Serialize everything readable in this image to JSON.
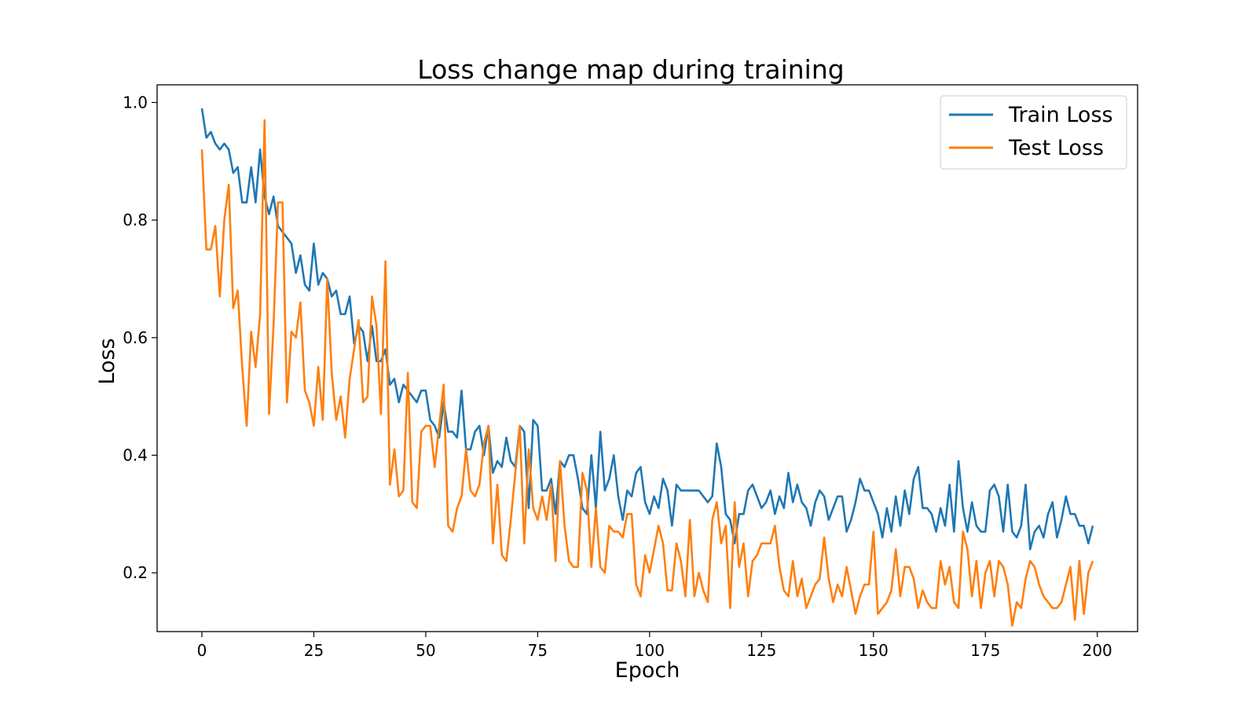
{
  "chart_data": {
    "type": "line",
    "title": "Loss change map during training",
    "xlabel": "Epoch",
    "ylabel": "Loss",
    "xlim": [
      -10,
      209
    ],
    "ylim": [
      0.1,
      1.03
    ],
    "xticks": [
      0,
      25,
      50,
      75,
      100,
      125,
      150,
      175,
      200
    ],
    "yticks": [
      0.2,
      0.4,
      0.6,
      0.8,
      1.0
    ],
    "xtick_labels": [
      "0",
      "25",
      "50",
      "75",
      "100",
      "125",
      "150",
      "175",
      "200"
    ],
    "ytick_labels": [
      "0.2",
      "0.4",
      "0.6",
      "0.8",
      "1.0"
    ],
    "grid": false,
    "legend_position": "top-right",
    "series": [
      {
        "name": "Train Loss",
        "color": "#1f77b4",
        "values": [
          0.99,
          0.94,
          0.95,
          0.93,
          0.92,
          0.93,
          0.92,
          0.88,
          0.89,
          0.83,
          0.83,
          0.89,
          0.83,
          0.92,
          0.84,
          0.81,
          0.84,
          0.79,
          0.78,
          0.77,
          0.76,
          0.71,
          0.74,
          0.69,
          0.68,
          0.76,
          0.69,
          0.71,
          0.7,
          0.67,
          0.68,
          0.64,
          0.64,
          0.67,
          0.59,
          0.62,
          0.61,
          0.56,
          0.62,
          0.56,
          0.56,
          0.58,
          0.52,
          0.53,
          0.49,
          0.52,
          0.51,
          0.5,
          0.49,
          0.51,
          0.51,
          0.46,
          0.45,
          0.43,
          0.49,
          0.44,
          0.44,
          0.43,
          0.51,
          0.41,
          0.41,
          0.44,
          0.45,
          0.4,
          0.45,
          0.37,
          0.39,
          0.38,
          0.43,
          0.39,
          0.38,
          0.45,
          0.44,
          0.31,
          0.46,
          0.45,
          0.34,
          0.34,
          0.36,
          0.3,
          0.39,
          0.38,
          0.4,
          0.4,
          0.36,
          0.31,
          0.3,
          0.4,
          0.31,
          0.44,
          0.34,
          0.36,
          0.4,
          0.33,
          0.29,
          0.34,
          0.33,
          0.37,
          0.38,
          0.32,
          0.3,
          0.33,
          0.31,
          0.36,
          0.34,
          0.28,
          0.35,
          0.34,
          0.34,
          0.34,
          0.34,
          0.34,
          0.33,
          0.32,
          0.33,
          0.42,
          0.38,
          0.3,
          0.29,
          0.25,
          0.3,
          0.3,
          0.34,
          0.35,
          0.33,
          0.31,
          0.32,
          0.34,
          0.3,
          0.33,
          0.31,
          0.37,
          0.32,
          0.35,
          0.32,
          0.31,
          0.28,
          0.32,
          0.34,
          0.33,
          0.29,
          0.31,
          0.33,
          0.33,
          0.27,
          0.29,
          0.32,
          0.36,
          0.34,
          0.34,
          0.32,
          0.3,
          0.26,
          0.31,
          0.27,
          0.33,
          0.28,
          0.34,
          0.3,
          0.36,
          0.38,
          0.31,
          0.31,
          0.3,
          0.27,
          0.31,
          0.28,
          0.35,
          0.27,
          0.39,
          0.31,
          0.27,
          0.32,
          0.28,
          0.27,
          0.27,
          0.34,
          0.35,
          0.33,
          0.27,
          0.35,
          0.27,
          0.26,
          0.28,
          0.35,
          0.24,
          0.27,
          0.28,
          0.26,
          0.3,
          0.32,
          0.26,
          0.29,
          0.33,
          0.3,
          0.3,
          0.28,
          0.28,
          0.25,
          0.28
        ]
      },
      {
        "name": "Test Loss",
        "color": "#ff7f0e",
        "values": [
          0.92,
          0.75,
          0.75,
          0.79,
          0.67,
          0.8,
          0.86,
          0.65,
          0.68,
          0.55,
          0.45,
          0.61,
          0.55,
          0.64,
          0.97,
          0.47,
          0.62,
          0.83,
          0.83,
          0.49,
          0.61,
          0.6,
          0.66,
          0.51,
          0.49,
          0.45,
          0.55,
          0.46,
          0.7,
          0.54,
          0.46,
          0.5,
          0.43,
          0.53,
          0.58,
          0.63,
          0.49,
          0.5,
          0.67,
          0.62,
          0.47,
          0.73,
          0.35,
          0.41,
          0.33,
          0.34,
          0.54,
          0.32,
          0.31,
          0.44,
          0.45,
          0.45,
          0.38,
          0.45,
          0.52,
          0.28,
          0.27,
          0.31,
          0.33,
          0.41,
          0.34,
          0.33,
          0.35,
          0.42,
          0.45,
          0.25,
          0.35,
          0.23,
          0.22,
          0.29,
          0.37,
          0.45,
          0.25,
          0.41,
          0.31,
          0.29,
          0.33,
          0.29,
          0.35,
          0.22,
          0.39,
          0.28,
          0.22,
          0.21,
          0.21,
          0.37,
          0.34,
          0.21,
          0.31,
          0.21,
          0.2,
          0.28,
          0.27,
          0.27,
          0.26,
          0.3,
          0.3,
          0.18,
          0.16,
          0.23,
          0.2,
          0.24,
          0.28,
          0.25,
          0.17,
          0.17,
          0.25,
          0.22,
          0.16,
          0.29,
          0.16,
          0.2,
          0.17,
          0.15,
          0.29,
          0.32,
          0.25,
          0.28,
          0.14,
          0.32,
          0.21,
          0.25,
          0.16,
          0.22,
          0.23,
          0.25,
          0.25,
          0.25,
          0.28,
          0.21,
          0.17,
          0.16,
          0.22,
          0.16,
          0.19,
          0.14,
          0.16,
          0.18,
          0.19,
          0.26,
          0.19,
          0.15,
          0.18,
          0.16,
          0.21,
          0.17,
          0.13,
          0.16,
          0.18,
          0.18,
          0.27,
          0.13,
          0.14,
          0.15,
          0.17,
          0.24,
          0.16,
          0.21,
          0.21,
          0.19,
          0.14,
          0.17,
          0.15,
          0.14,
          0.14,
          0.22,
          0.18,
          0.21,
          0.15,
          0.14,
          0.27,
          0.24,
          0.16,
          0.22,
          0.14,
          0.2,
          0.22,
          0.16,
          0.22,
          0.21,
          0.18,
          0.11,
          0.15,
          0.14,
          0.19,
          0.22,
          0.21,
          0.18,
          0.16,
          0.15,
          0.14,
          0.14,
          0.15,
          0.18,
          0.21,
          0.12,
          0.22,
          0.13,
          0.2,
          0.22
        ]
      }
    ]
  }
}
